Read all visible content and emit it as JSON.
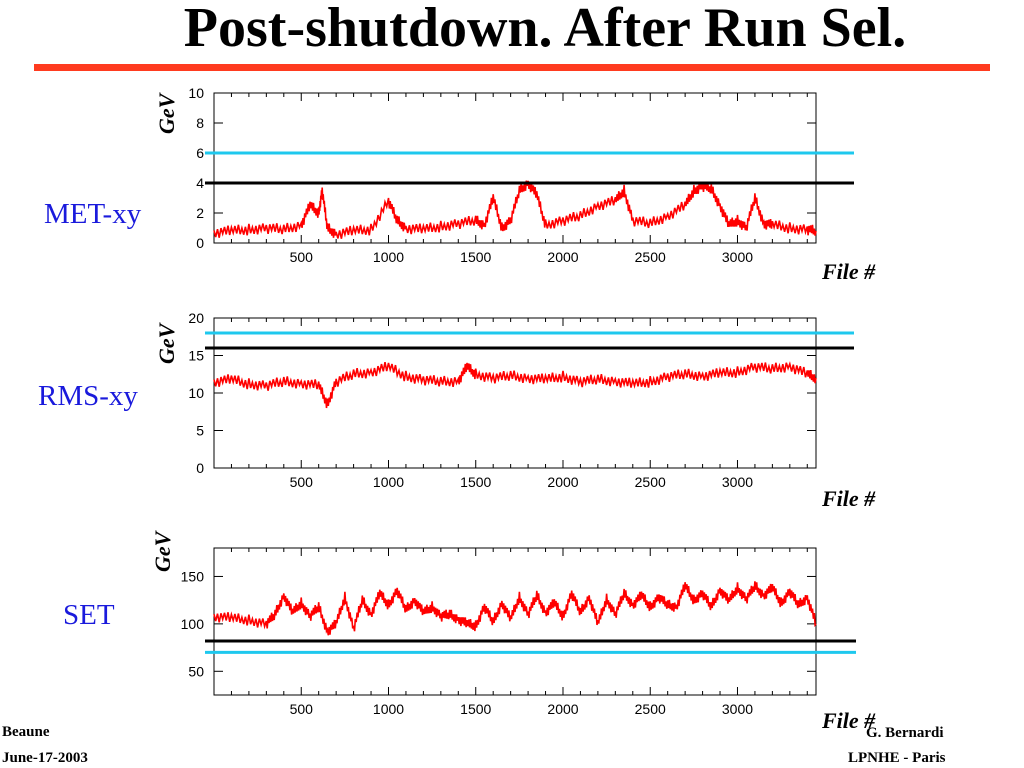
{
  "title": "Post-shutdown. After Run Sel.",
  "footer": {
    "left_line1": "Beaune",
    "left_line2": "June-17-2003",
    "right_line1": "G. Bernardi",
    "right_line2": "LPNHE - Paris"
  },
  "colors": {
    "title_rule": "#ff3b1f",
    "data": "#ff0000",
    "cyan_line": "#1ec8ee",
    "black_line": "#000000",
    "row_label": "#1a1adc"
  },
  "chart_data": [
    {
      "type": "line",
      "row_label": "MET-xy",
      "ylabel": "GeV",
      "xlabel": "File #",
      "xlim": [
        0,
        3450
      ],
      "ylim": [
        0,
        10
      ],
      "x_ticks": [
        "500",
        "1000",
        "1500",
        "2000",
        "2500",
        "3000"
      ],
      "y_ticks": [
        "0",
        "2",
        "4",
        "6",
        "8",
        "10"
      ],
      "reference_lines": [
        {
          "color": "cyan",
          "y": 6
        },
        {
          "color": "black",
          "y": 4
        }
      ],
      "series": [
        {
          "x": [
            0,
            100,
            200,
            300,
            400,
            500,
            550,
            600,
            620,
            650,
            700,
            800,
            900,
            1000,
            1050,
            1100,
            1200,
            1300,
            1400,
            1500,
            1550,
            1600,
            1650,
            1700,
            1750,
            1800,
            1850,
            1900,
            2000,
            2100,
            2200,
            2300,
            2350,
            2400,
            2500,
            2600,
            2700,
            2750,
            2800,
            2850,
            2900,
            2950,
            3000,
            3050,
            3100,
            3150,
            3200,
            3300,
            3400,
            3450
          ],
          "values": [
            0.7,
            0.8,
            0.9,
            1.0,
            0.9,
            1.2,
            2.5,
            2.0,
            3.5,
            1.0,
            0.6,
            0.8,
            0.9,
            2.8,
            1.5,
            1.0,
            0.9,
            1.1,
            1.3,
            1.5,
            1.2,
            3.0,
            1.0,
            1.5,
            3.5,
            4.0,
            3.2,
            1.2,
            1.5,
            1.8,
            2.5,
            2.8,
            3.5,
            1.5,
            1.3,
            1.8,
            2.5,
            3.5,
            3.8,
            3.6,
            2.5,
            1.2,
            1.5,
            1.0,
            3.0,
            1.3,
            1.2,
            1.0,
            0.9,
            0.8
          ]
        }
      ]
    },
    {
      "type": "line",
      "row_label": "RMS-xy",
      "ylabel": "GeV",
      "xlabel": "File #",
      "xlim": [
        0,
        3450
      ],
      "ylim": [
        0,
        20
      ],
      "x_ticks": [
        "500",
        "1000",
        "1500",
        "2000",
        "2500",
        "3000"
      ],
      "y_ticks": [
        "0",
        "5",
        "10",
        "15",
        "20"
      ],
      "reference_lines": [
        {
          "color": "cyan",
          "y": 18
        },
        {
          "color": "black",
          "y": 16
        }
      ],
      "series": [
        {
          "x": [
            0,
            100,
            200,
            300,
            400,
            500,
            600,
            650,
            700,
            800,
            900,
            1000,
            1100,
            1200,
            1300,
            1400,
            1450,
            1500,
            1600,
            1700,
            1800,
            1900,
            2000,
            2100,
            2200,
            2300,
            2400,
            2500,
            2600,
            2700,
            2800,
            2900,
            3000,
            3100,
            3200,
            3300,
            3400,
            3450
          ],
          "values": [
            11.5,
            11.8,
            11.2,
            11.0,
            11.5,
            11.3,
            11.0,
            8.5,
            11.5,
            12.5,
            12.8,
            13.5,
            12.2,
            11.8,
            11.5,
            11.6,
            13.5,
            12.5,
            12.0,
            12.3,
            12.0,
            11.8,
            12.2,
            11.5,
            11.8,
            11.6,
            11.2,
            11.5,
            12.2,
            12.5,
            12.3,
            12.6,
            12.8,
            13.5,
            13.2,
            13.6,
            12.5,
            12.0
          ]
        }
      ]
    },
    {
      "type": "line",
      "row_label": "SET",
      "ylabel": "GeV",
      "xlabel": "File #",
      "xlim": [
        0,
        3450
      ],
      "ylim": [
        25,
        180
      ],
      "x_ticks": [
        "500",
        "1000",
        "1500",
        "2000",
        "2500",
        "3000"
      ],
      "y_ticks": [
        "50",
        "100",
        "150"
      ],
      "reference_lines": [
        {
          "color": "black",
          "y": 82
        },
        {
          "color": "cyan",
          "y": 70
        }
      ],
      "series": [
        {
          "x": [
            0,
            100,
            200,
            300,
            350,
            400,
            450,
            500,
            550,
            600,
            650,
            700,
            750,
            800,
            850,
            900,
            950,
            1000,
            1050,
            1100,
            1150,
            1200,
            1250,
            1300,
            1350,
            1400,
            1450,
            1500,
            1550,
            1600,
            1650,
            1700,
            1750,
            1800,
            1850,
            1900,
            1950,
            2000,
            2050,
            2100,
            2150,
            2200,
            2250,
            2300,
            2350,
            2400,
            2450,
            2500,
            2550,
            2600,
            2650,
            2700,
            2750,
            2800,
            2850,
            2900,
            2950,
            3000,
            3050,
            3100,
            3150,
            3200,
            3250,
            3300,
            3350,
            3400,
            3450
          ],
          "values": [
            108,
            106,
            104,
            100,
            110,
            130,
            112,
            122,
            108,
            118,
            92,
            100,
            128,
            95,
            125,
            110,
            132,
            120,
            135,
            115,
            125,
            112,
            118,
            108,
            110,
            105,
            100,
            98,
            118,
            102,
            122,
            105,
            128,
            110,
            130,
            112,
            122,
            108,
            132,
            112,
            128,
            100,
            126,
            110,
            132,
            120,
            130,
            118,
            128,
            120,
            118,
            140,
            125,
            132,
            118,
            136,
            124,
            138,
            126,
            140,
            130,
            138,
            122,
            134,
            120,
            128,
            100
          ]
        }
      ]
    }
  ]
}
